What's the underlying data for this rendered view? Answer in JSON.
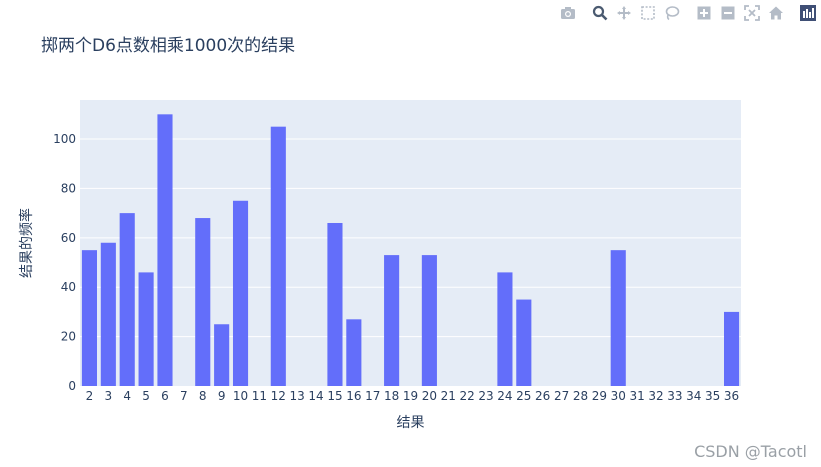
{
  "modebar": {
    "icons": [
      "camera-icon",
      "zoom-icon",
      "pan-icon",
      "box-select-icon",
      "lasso-icon",
      "zoom-in-icon",
      "zoom-out-icon",
      "autoscale-icon",
      "home-icon",
      "plotly-logo-icon"
    ]
  },
  "watermark": "CSDN @Tacotl",
  "chart_data": {
    "type": "bar",
    "title": "掷两个D6点数相乘1000次的结果",
    "xlabel": "结果",
    "ylabel": "结果的频率",
    "categories": [
      "2",
      "3",
      "4",
      "5",
      "6",
      "7",
      "8",
      "9",
      "10",
      "11",
      "12",
      "13",
      "14",
      "15",
      "16",
      "17",
      "18",
      "19",
      "20",
      "21",
      "22",
      "23",
      "24",
      "25",
      "26",
      "27",
      "28",
      "29",
      "30",
      "31",
      "32",
      "33",
      "34",
      "35",
      "36"
    ],
    "values": [
      55,
      58,
      70,
      46,
      110,
      0,
      68,
      25,
      75,
      0,
      105,
      0,
      0,
      66,
      27,
      0,
      53,
      0,
      53,
      0,
      0,
      0,
      46,
      35,
      0,
      0,
      0,
      0,
      55,
      0,
      0,
      0,
      0,
      0,
      30
    ],
    "ylim": [
      0,
      115.8
    ],
    "yticks": [
      0,
      20,
      40,
      60,
      80,
      100
    ],
    "bar_color": "#636efa",
    "plot_bg": "#e5ecf6",
    "grid": true,
    "legend": false
  }
}
